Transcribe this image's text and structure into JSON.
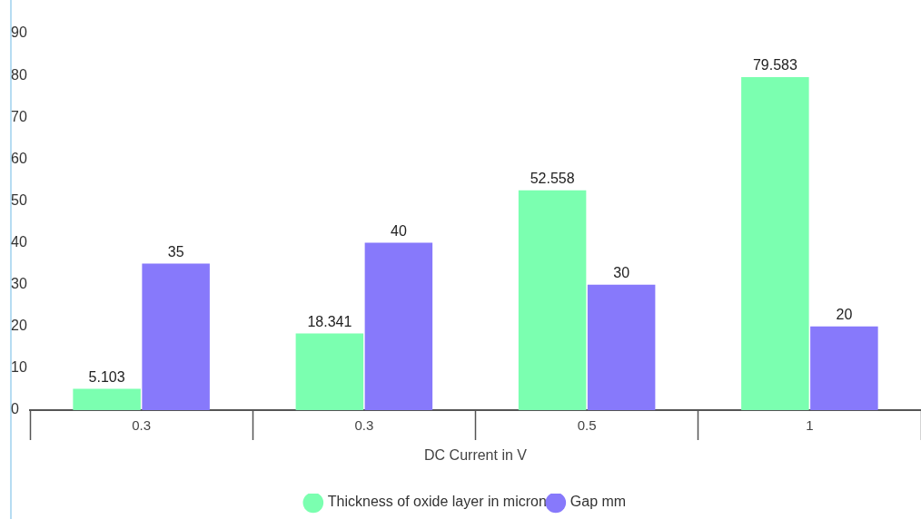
{
  "chart_data": {
    "type": "bar",
    "xlabel": "DC Current in V",
    "categories": [
      "0.3",
      "0.3",
      "0.5",
      "1"
    ],
    "series": [
      {
        "name": "Thickness of oxide layer in micron",
        "color": "#7bffb0",
        "values": [
          5.103,
          18.341,
          52.558,
          79.583
        ]
      },
      {
        "name": "Gap mm",
        "color": "#8779fb",
        "values": [
          35,
          40,
          30,
          20
        ]
      }
    ],
    "ylim": [
      0,
      90
    ],
    "yticks": [
      0,
      10,
      20,
      30,
      40,
      50,
      60,
      70,
      80,
      90
    ],
    "grid": false,
    "legend": "bottom",
    "data_labels": true
  }
}
